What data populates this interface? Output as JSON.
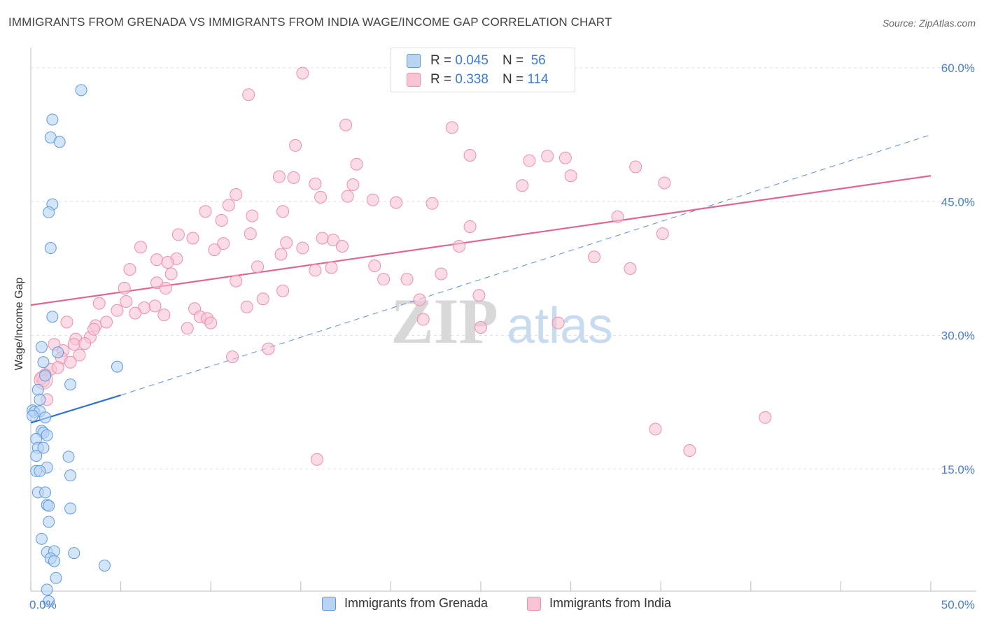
{
  "header": {
    "title": "IMMIGRANTS FROM GRENADA VS IMMIGRANTS FROM INDIA WAGE/INCOME GAP CORRELATION CHART",
    "source": "Source: ZipAtlas.com"
  },
  "watermark": {
    "zip": "ZIP",
    "atlas": "atlas"
  },
  "legend": {
    "series_a": {
      "r_label": "R =",
      "r_value": "0.045",
      "n_label": "N =",
      "n_value": "56",
      "color": "#5b9ae0"
    },
    "series_b": {
      "r_label": "R =",
      "r_value": "0.338",
      "n_label": "N =",
      "n_value": "114",
      "color": "#ec8fab"
    }
  },
  "colors": {
    "blue_fill": "#b9d3f3",
    "blue_stroke": "#5b9ae0",
    "blue_line": "#2e73d0",
    "pink_fill": "#f8c3d3",
    "pink_stroke": "#ec8fab",
    "pink_line": "#e06690",
    "grid": "#e3e3e3",
    "tick_label": "#4a7fd0"
  },
  "chart_data": {
    "type": "scatter",
    "title": "IMMIGRANTS FROM GRENADA VS IMMIGRANTS FROM INDIA WAGE/INCOME GAP CORRELATION CHART",
    "xlabel": "",
    "ylabel": "Wage/Income Gap",
    "xlim": [
      0,
      50
    ],
    "ylim": [
      0,
      60
    ],
    "x_tick_labels": [
      "0.0%",
      "50.0%"
    ],
    "y_ticks": [
      15,
      30,
      45,
      60
    ],
    "y_tick_labels": [
      "15.0%",
      "30.0%",
      "45.0%",
      "60.0%"
    ],
    "grid": true,
    "legend_position": "top-center",
    "series": [
      {
        "name": "Immigrants from Grenada",
        "color": "#5b9ae0",
        "trend": {
          "x": [
            0,
            5
          ],
          "y": [
            20.2,
            23.3
          ],
          "extended_to": [
            50,
            52.5
          ]
        },
        "points": [
          [
            2.8,
            57.5
          ],
          [
            1.2,
            54.2
          ],
          [
            1.1,
            52.2
          ],
          [
            1.6,
            51.7
          ],
          [
            1.2,
            44.7
          ],
          [
            1.0,
            43.8
          ],
          [
            1.1,
            39.8
          ],
          [
            1.2,
            32.1
          ],
          [
            0.6,
            28.7
          ],
          [
            1.5,
            28.1
          ],
          [
            0.7,
            27.0
          ],
          [
            0.8,
            25.5
          ],
          [
            2.2,
            24.5
          ],
          [
            4.8,
            26.5
          ],
          [
            0.4,
            23.9
          ],
          [
            0.5,
            22.8
          ],
          [
            0.1,
            21.6
          ],
          [
            0.2,
            21.4
          ],
          [
            0.5,
            21.5
          ],
          [
            0.1,
            21.0
          ],
          [
            0.8,
            20.8
          ],
          [
            0.6,
            19.3
          ],
          [
            0.7,
            19.1
          ],
          [
            0.9,
            18.8
          ],
          [
            0.3,
            18.4
          ],
          [
            0.4,
            17.4
          ],
          [
            0.7,
            17.4
          ],
          [
            0.3,
            16.5
          ],
          [
            2.1,
            16.4
          ],
          [
            0.9,
            15.2
          ],
          [
            0.3,
            14.8
          ],
          [
            0.5,
            14.8
          ],
          [
            2.2,
            14.3
          ],
          [
            0.4,
            12.4
          ],
          [
            0.8,
            12.4
          ],
          [
            0.9,
            11.0
          ],
          [
            1.0,
            10.9
          ],
          [
            2.2,
            10.6
          ],
          [
            1.0,
            9.1
          ],
          [
            0.6,
            7.2
          ],
          [
            0.9,
            5.7
          ],
          [
            1.3,
            5.8
          ],
          [
            2.4,
            5.6
          ],
          [
            1.1,
            5.0
          ],
          [
            1.3,
            4.7
          ],
          [
            4.1,
            4.2
          ],
          [
            1.4,
            2.8
          ],
          [
            0.9,
            1.5
          ],
          [
            1.0,
            0.2
          ]
        ]
      },
      {
        "name": "Immigrants from India",
        "color": "#ec8fab",
        "trend": {
          "x": [
            0,
            50
          ],
          "y": [
            33.4,
            47.9
          ]
        },
        "points": [
          [
            15.1,
            59.4
          ],
          [
            12.1,
            57.0
          ],
          [
            17.5,
            53.6
          ],
          [
            23.4,
            53.3
          ],
          [
            14.7,
            51.3
          ],
          [
            24.4,
            50.2
          ],
          [
            18.1,
            49.2
          ],
          [
            27.7,
            49.6
          ],
          [
            28.7,
            50.1
          ],
          [
            29.7,
            49.9
          ],
          [
            13.8,
            47.8
          ],
          [
            14.6,
            47.7
          ],
          [
            15.8,
            47.0
          ],
          [
            17.9,
            46.9
          ],
          [
            30.0,
            47.9
          ],
          [
            27.3,
            46.8
          ],
          [
            35.2,
            47.1
          ],
          [
            33.6,
            48.9
          ],
          [
            11.4,
            45.8
          ],
          [
            16.1,
            45.5
          ],
          [
            17.6,
            45.6
          ],
          [
            19.0,
            45.2
          ],
          [
            20.3,
            44.9
          ],
          [
            22.3,
            44.8
          ],
          [
            11.0,
            44.6
          ],
          [
            9.7,
            43.9
          ],
          [
            12.3,
            43.4
          ],
          [
            14.0,
            43.9
          ],
          [
            10.6,
            42.9
          ],
          [
            24.4,
            42.2
          ],
          [
            32.6,
            43.3
          ],
          [
            35.1,
            41.4
          ],
          [
            8.2,
            41.3
          ],
          [
            9.0,
            40.9
          ],
          [
            12.2,
            41.4
          ],
          [
            16.2,
            40.9
          ],
          [
            16.8,
            40.7
          ],
          [
            17.3,
            40.0
          ],
          [
            14.2,
            40.4
          ],
          [
            15.1,
            39.8
          ],
          [
            10.7,
            40.3
          ],
          [
            10.2,
            39.6
          ],
          [
            6.1,
            39.9
          ],
          [
            7.0,
            38.5
          ],
          [
            8.1,
            38.6
          ],
          [
            7.6,
            38.2
          ],
          [
            13.9,
            39.1
          ],
          [
            23.8,
            40.0
          ],
          [
            31.3,
            38.8
          ],
          [
            5.5,
            37.4
          ],
          [
            7.8,
            36.9
          ],
          [
            12.6,
            37.7
          ],
          [
            15.8,
            37.3
          ],
          [
            16.7,
            37.6
          ],
          [
            19.1,
            37.8
          ],
          [
            22.8,
            36.9
          ],
          [
            33.3,
            37.5
          ],
          [
            11.4,
            36.1
          ],
          [
            19.6,
            36.3
          ],
          [
            20.9,
            36.3
          ],
          [
            7.0,
            35.9
          ],
          [
            7.5,
            35.3
          ],
          [
            5.2,
            35.3
          ],
          [
            14.0,
            35.0
          ],
          [
            12.9,
            34.1
          ],
          [
            21.6,
            34.0
          ],
          [
            24.9,
            34.5
          ],
          [
            3.8,
            33.6
          ],
          [
            5.3,
            33.8
          ],
          [
            4.8,
            32.8
          ],
          [
            6.3,
            33.1
          ],
          [
            6.9,
            33.3
          ],
          [
            9.1,
            33.0
          ],
          [
            12.0,
            33.2
          ],
          [
            5.8,
            32.5
          ],
          [
            7.4,
            32.3
          ],
          [
            9.4,
            32.1
          ],
          [
            9.8,
            31.9
          ],
          [
            10.0,
            31.4
          ],
          [
            8.7,
            30.8
          ],
          [
            3.6,
            31.1
          ],
          [
            2.0,
            31.5
          ],
          [
            4.2,
            31.5
          ],
          [
            2.5,
            29.6
          ],
          [
            3.3,
            29.8
          ],
          [
            1.3,
            29.0
          ],
          [
            2.4,
            29.0
          ],
          [
            3.0,
            29.1
          ],
          [
            3.5,
            30.7
          ],
          [
            1.8,
            28.3
          ],
          [
            2.7,
            27.8
          ],
          [
            1.7,
            27.5
          ],
          [
            2.2,
            27.0
          ],
          [
            1.1,
            26.2
          ],
          [
            1.5,
            26.4
          ],
          [
            0.8,
            25.6
          ],
          [
            0.6,
            25.2
          ],
          [
            0.7,
            24.9
          ],
          [
            0.9,
            22.8
          ],
          [
            11.2,
            27.6
          ],
          [
            13.2,
            28.5
          ],
          [
            21.8,
            31.8
          ],
          [
            25.0,
            30.9
          ],
          [
            29.3,
            31.4
          ],
          [
            15.9,
            16.1
          ],
          [
            34.7,
            19.5
          ],
          [
            36.6,
            17.1
          ],
          [
            40.8,
            20.8
          ]
        ]
      }
    ]
  },
  "axis_labels": {
    "x_min": "0.0%",
    "x_max": "50.0%"
  }
}
